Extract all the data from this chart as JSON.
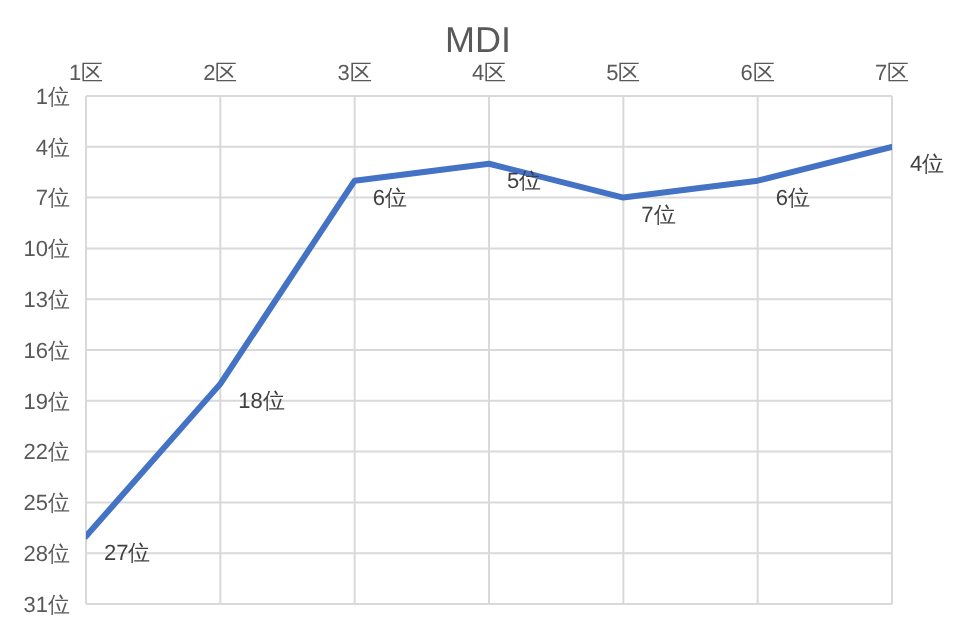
{
  "chart_data": {
    "type": "line",
    "title": "MDI",
    "categories": [
      "1区",
      "2区",
      "3区",
      "4区",
      "5区",
      "6区",
      "7区"
    ],
    "series": [
      {
        "color": "#4472c4",
        "values": [
          27,
          18,
          6,
          5,
          7,
          6,
          4
        ],
        "value_labels": [
          "27位",
          "18位",
          "6位",
          "5位",
          "7位",
          "6位",
          "4位"
        ]
      }
    ],
    "ylim": [
      31,
      1
    ],
    "yticks": [
      {
        "value": 1,
        "label": "1位"
      },
      {
        "value": 4,
        "label": "4位"
      },
      {
        "value": 7,
        "label": "7位"
      },
      {
        "value": 10,
        "label": "10位"
      },
      {
        "value": 13,
        "label": "13位"
      },
      {
        "value": 16,
        "label": "16位"
      },
      {
        "value": 19,
        "label": "19位"
      },
      {
        "value": 22,
        "label": "22位"
      },
      {
        "value": 25,
        "label": "25位"
      },
      {
        "value": 28,
        "label": "28位"
      },
      {
        "value": 31,
        "label": "31位"
      }
    ],
    "grid": true,
    "marker": "none",
    "line_style": "solid"
  }
}
